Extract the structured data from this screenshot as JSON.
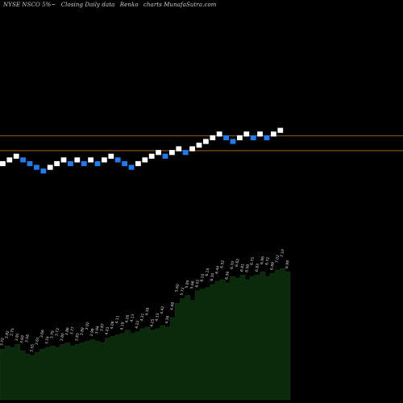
{
  "title": {
    "symbol": "NYSE NSCO 5%~",
    "closing": "Closing Daily data",
    "type": "Renko",
    "source": "charts MunafaSutra.com"
  },
  "colors": {
    "background": "#000000",
    "up_brick": "#ffffff",
    "down_brick": "#1e7bf0",
    "level_line": "#b8702a",
    "volume_fill": "#0b2a0b",
    "volume_outline": "#0e3a0e"
  },
  "chart_data": [
    {
      "type": "renko",
      "panel": "price",
      "brick_levels": [
        0,
        1,
        2,
        1,
        0,
        -1,
        -2,
        -1,
        0,
        1,
        0,
        1,
        0,
        1,
        0,
        1,
        2,
        1,
        0,
        -1,
        0,
        1,
        2,
        3,
        2,
        3,
        4,
        3,
        4,
        5,
        6,
        7,
        8,
        7,
        6,
        7,
        8,
        7,
        8,
        7,
        8,
        9
      ],
      "brick_dirs": [
        "up",
        "up",
        "up",
        "down",
        "down",
        "down",
        "down",
        "up",
        "up",
        "up",
        "down",
        "up",
        "down",
        "up",
        "down",
        "up",
        "up",
        "down",
        "down",
        "down",
        "up",
        "up",
        "up",
        "up",
        "down",
        "up",
        "up",
        "down",
        "up",
        "up",
        "up",
        "up",
        "up",
        "down",
        "down",
        "up",
        "up",
        "down",
        "up",
        "down",
        "up",
        "up"
      ],
      "reference_lines": [
        {
          "name": "upper",
          "level": 7.5
        },
        {
          "name": "lower",
          "level": 3.5
        }
      ]
    },
    {
      "type": "area",
      "panel": "volume",
      "values": [
        3.2,
        3.4,
        3.3,
        3.5,
        3.1,
        2.9,
        2.8,
        3.0,
        3.2,
        3.3,
        3.4,
        3.3,
        3.5,
        3.6,
        3.4,
        3.5,
        3.6,
        3.7,
        3.8,
        3.7,
        3.6,
        3.9,
        4.0,
        4.1,
        4.2,
        4.4,
        4.2,
        4.3,
        4.5,
        4.6,
        4.4,
        4.5,
        4.7,
        4.6,
        5.2,
        6.1,
        6.4,
        6.6,
        6.3,
        6.9,
        7.0,
        7.1,
        7.3,
        7.5,
        7.6,
        7.4,
        7.8,
        7.7,
        7.9,
        7.6,
        7.8,
        7.9,
        8.1,
        7.8,
        8.0,
        8.2,
        8.3,
        8.1
      ],
      "labels": [
        "3.70",
        "3.82",
        "3.75",
        "3.81",
        "3.69",
        "3.58",
        "3.55",
        "3.61",
        "3.66",
        "3.74",
        "3.79",
        "3.73",
        "3.80",
        "3.86",
        "3.77",
        "3.83",
        "3.89",
        "3.92",
        "3.98",
        "3.94",
        "3.87",
        "4.01",
        "4.08",
        "4.11",
        "4.19",
        "4.26",
        "4.13",
        "4.22",
        "4.31",
        "4.38",
        "4.25",
        "4.33",
        "4.42",
        "4.36",
        "4.88",
        "5.60",
        "5.72",
        "5.85",
        "5.66",
        "6.02",
        "6.10",
        "6.15",
        "6.30",
        "6.44",
        "6.52",
        "6.39",
        "6.70",
        "6.62",
        "6.81",
        "6.58",
        "6.75",
        "6.83",
        "6.96",
        "6.72",
        "6.88",
        "7.02",
        "7.10",
        "6.98"
      ],
      "ylim": [
        0,
        10
      ]
    }
  ]
}
